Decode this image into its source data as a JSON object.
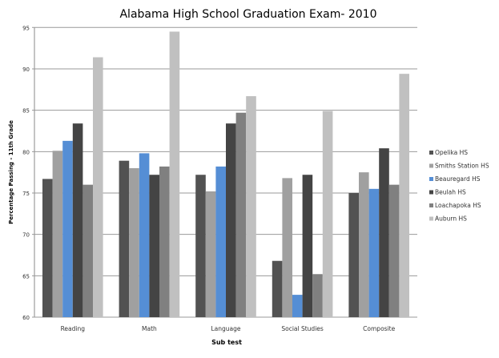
{
  "chart_data": {
    "type": "bar",
    "title": "Alabama High School Graduation Exam- 2010",
    "xlabel": "Sub test",
    "ylabel": "Percentage Passing - 11th Grade",
    "ylim": [
      60,
      95
    ],
    "yticks": [
      60,
      65,
      70,
      75,
      80,
      85,
      90,
      95
    ],
    "grid": true,
    "legend": "right",
    "categories": [
      "Reading",
      "Math",
      "Language",
      "Social Studies",
      "Composite"
    ],
    "series": [
      {
        "name": "Opelika HS",
        "color": "#525252",
        "values": [
          76.7,
          78.9,
          77.2,
          66.8,
          75.0
        ]
      },
      {
        "name": "Smiths Station HS",
        "color": "#a0a0a0",
        "values": [
          80.1,
          78.0,
          75.2,
          76.8,
          77.5
        ]
      },
      {
        "name": "Beauregard HS",
        "color": "#558ed5",
        "values": [
          81.3,
          79.8,
          78.2,
          62.7,
          75.5
        ]
      },
      {
        "name": "Beulah HS",
        "color": "#444444",
        "values": [
          83.4,
          77.2,
          83.4,
          77.2,
          80.4
        ]
      },
      {
        "name": "Loachapoka HS",
        "color": "#808080",
        "values": [
          76.0,
          78.2,
          84.7,
          65.2,
          76.0
        ]
      },
      {
        "name": "Auburn HS",
        "color": "#c0c0c0",
        "values": [
          91.4,
          94.5,
          86.7,
          84.9,
          89.4
        ]
      }
    ]
  }
}
